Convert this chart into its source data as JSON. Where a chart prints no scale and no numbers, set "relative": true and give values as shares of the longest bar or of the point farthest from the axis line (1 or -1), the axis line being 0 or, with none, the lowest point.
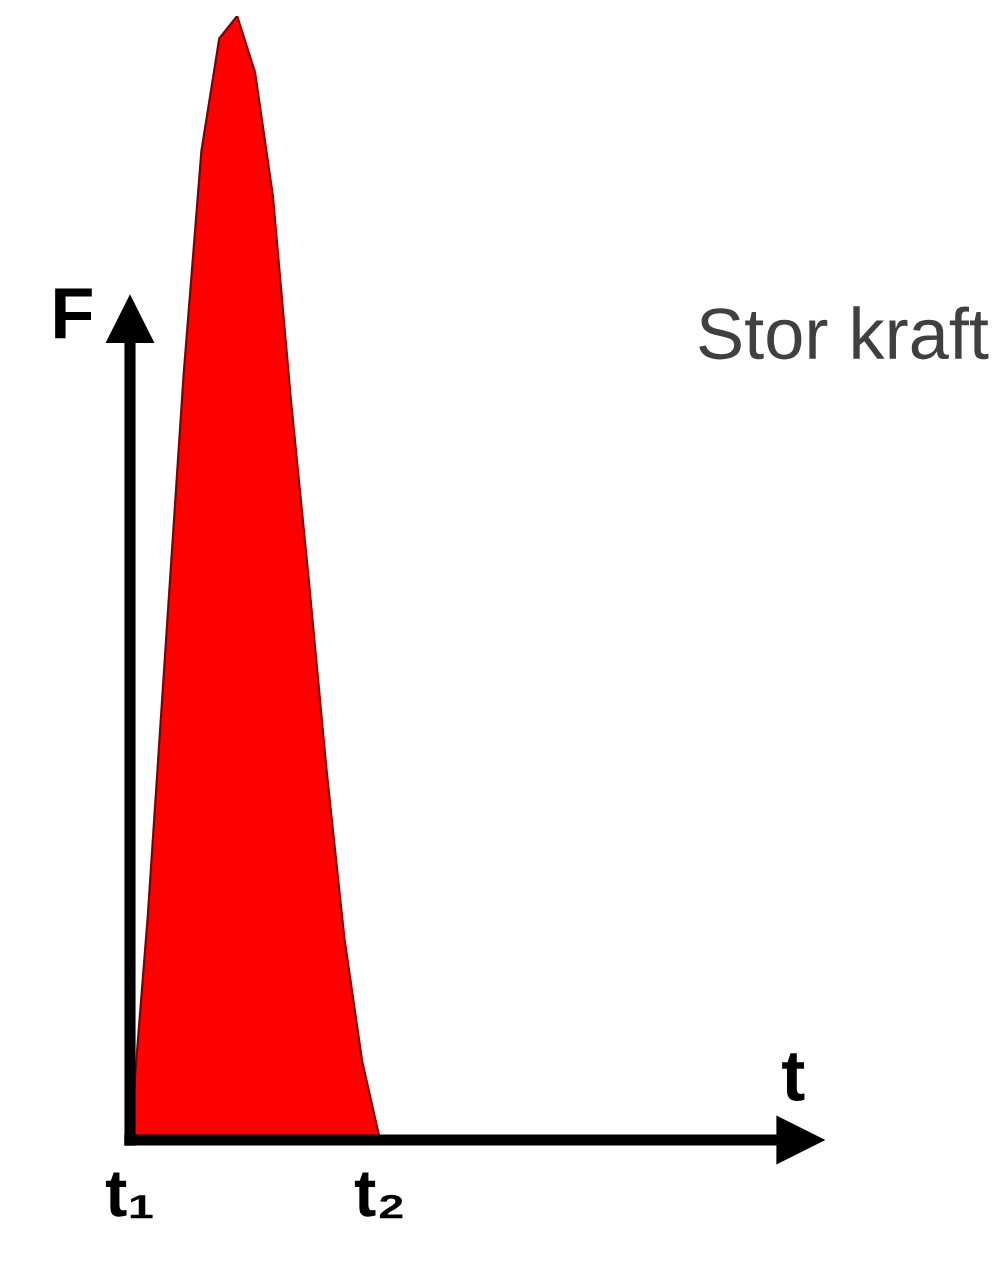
{
  "chart_data": {
    "type": "area",
    "title": "Stor kraft",
    "annotations": [
      "t"
    ],
    "ylabel": "F",
    "relative": true,
    "color": "#ff0000",
    "categories": [
      "t₁",
      null,
      null,
      null,
      null,
      null,
      null,
      null,
      null,
      null,
      null,
      null,
      null,
      null,
      "t₂"
    ],
    "values": [
      0,
      0.2,
      0.44,
      0.68,
      0.88,
      0.98,
      1,
      0.95,
      0.84,
      0.66,
      0.5,
      0.33,
      0.18,
      0.07,
      0
    ],
    "grid": false,
    "legend": false
  }
}
